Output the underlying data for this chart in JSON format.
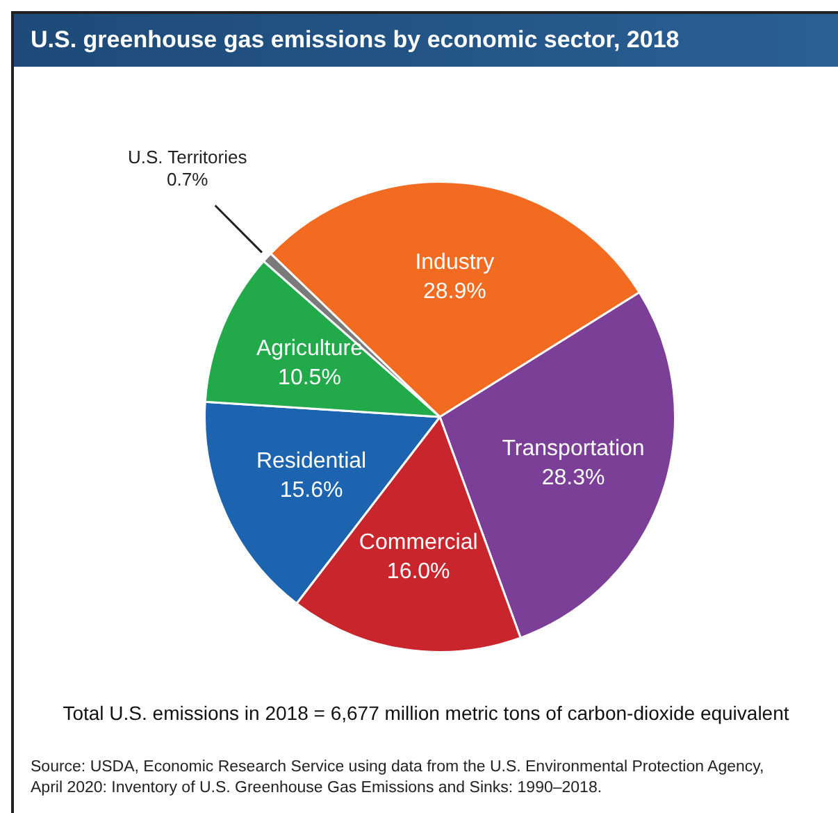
{
  "chart_data": {
    "type": "pie",
    "title": "U.S. greenhouse gas emissions by economic sector, 2018",
    "categories": [
      "Industry",
      "Transportation",
      "Commercial",
      "Residential",
      "Agriculture",
      "U.S. Territories"
    ],
    "values": [
      28.9,
      28.3,
      16.0,
      15.6,
      10.5,
      0.7
    ],
    "value_labels": [
      "28.9%",
      "28.3%",
      "16.0%",
      "15.6%",
      "10.5%",
      "0.7%"
    ],
    "colors": [
      "#f26b21",
      "#7b3f98",
      "#c8252c",
      "#1c63b0",
      "#22a94a",
      "#7a7a7a"
    ],
    "annotations": [
      "Total U.S. emissions in 2018 = 6,677 million metric tons of carbon-dioxide equivalent",
      "Source: USDA, Economic Research Service using data from the U.S. Environmental Protection Agency, April 2020: Inventory of U.S. Greenhouse Gas Emissions and Sinks: 1990–2018."
    ]
  }
}
